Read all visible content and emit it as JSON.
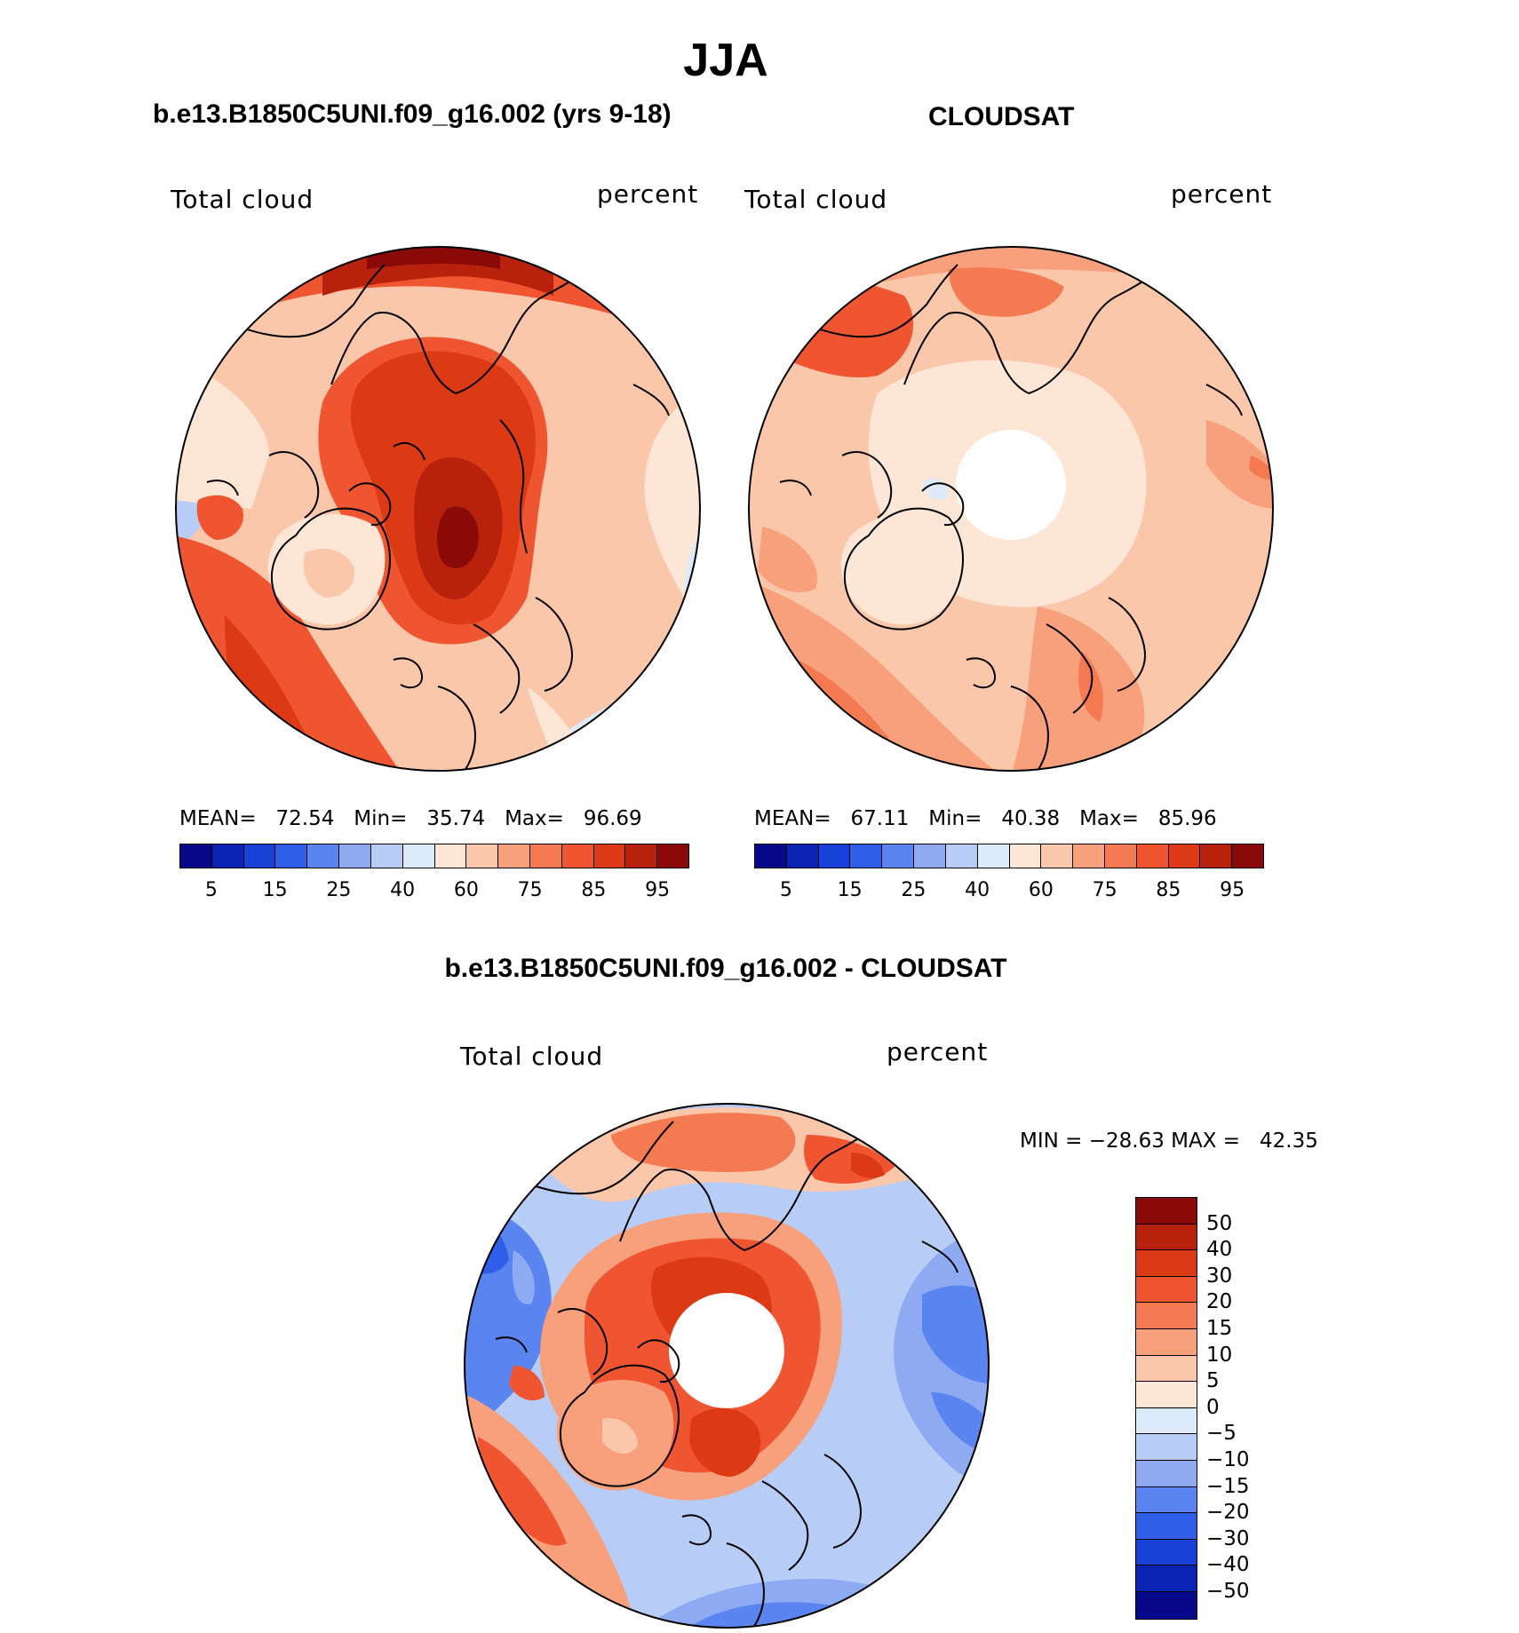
{
  "title": "JJA",
  "panels": [
    {
      "heading": "b.e13.B1850C5UNI.f09_g16.002 (yrs 9-18)",
      "left_label": "Total cloud",
      "right_label": "percent",
      "stats": "MEAN=   72.54   Min=   35.74   Max=   96.69",
      "has_polar_hole": false
    },
    {
      "heading": "CLOUDSAT",
      "left_label": "Total cloud",
      "right_label": "percent",
      "stats": "MEAN=   67.11   Min=   40.38   Max=   85.96",
      "has_polar_hole": true
    },
    {
      "heading": "b.e13.B1850C5UNI.f09_g16.002 - CLOUDSAT",
      "left_label": "Total cloud",
      "right_label": "percent",
      "stats": "MIN = −28.63 MAX =   42.35",
      "has_polar_hole": true
    }
  ],
  "abs_colorbar": {
    "tick_labels": [
      "5",
      "15",
      "25",
      "40",
      "60",
      "75",
      "85",
      "95"
    ],
    "colors": [
      "#08088a",
      "#0b24b5",
      "#1640d8",
      "#2f5fe8",
      "#5a84f0",
      "#8daaf2",
      "#b8cdf6",
      "#ddeafa",
      "#fde6d6",
      "#fbc7aa",
      "#f8a07c",
      "#f47a52",
      "#ef5530",
      "#db3a14",
      "#b8220c",
      "#8a0a0a"
    ]
  },
  "diff_colorbar": {
    "tick_labels": [
      "50",
      "40",
      "30",
      "20",
      "15",
      "10",
      "5",
      "0",
      "−5",
      "−10",
      "−15",
      "−20",
      "−30",
      "−40",
      "−50"
    ],
    "colors": [
      "#8a0a0a",
      "#b8220c",
      "#db3a14",
      "#ef5530",
      "#f47a52",
      "#f8a07c",
      "#fbc7aa",
      "#fde6d6",
      "#ddeafa",
      "#b8cdf6",
      "#8daaf2",
      "#5a84f0",
      "#2f5fe8",
      "#1640d8",
      "#0b24b5",
      "#08088a"
    ]
  },
  "chart_data": [
    {
      "type": "heatmap",
      "title": "b.e13.B1850C5UNI.f09_g16.002 (yrs 9-18)",
      "variable": "Total cloud",
      "units": "percent",
      "season": "JJA",
      "projection": "north-polar-stereographic",
      "mean": 72.54,
      "min": 35.74,
      "max": 96.69,
      "levels": [
        5,
        10,
        15,
        20,
        25,
        30,
        40,
        50,
        60,
        70,
        75,
        80,
        85,
        90,
        95
      ]
    },
    {
      "type": "heatmap",
      "title": "CLOUDSAT",
      "variable": "Total cloud",
      "units": "percent",
      "season": "JJA",
      "projection": "north-polar-stereographic",
      "mean": 67.11,
      "min": 40.38,
      "max": 85.96,
      "levels": [
        5,
        10,
        15,
        20,
        25,
        30,
        40,
        50,
        60,
        70,
        75,
        80,
        85,
        90,
        95
      ]
    },
    {
      "type": "heatmap",
      "title": "b.e13.B1850C5UNI.f09_g16.002 - CLOUDSAT",
      "variable": "Total cloud",
      "units": "percent",
      "season": "JJA",
      "projection": "north-polar-stereographic",
      "min": -28.63,
      "max": 42.35,
      "levels": [
        -50,
        -40,
        -30,
        -20,
        -15,
        -10,
        -5,
        0,
        5,
        10,
        15,
        20,
        30,
        40,
        50
      ]
    }
  ]
}
